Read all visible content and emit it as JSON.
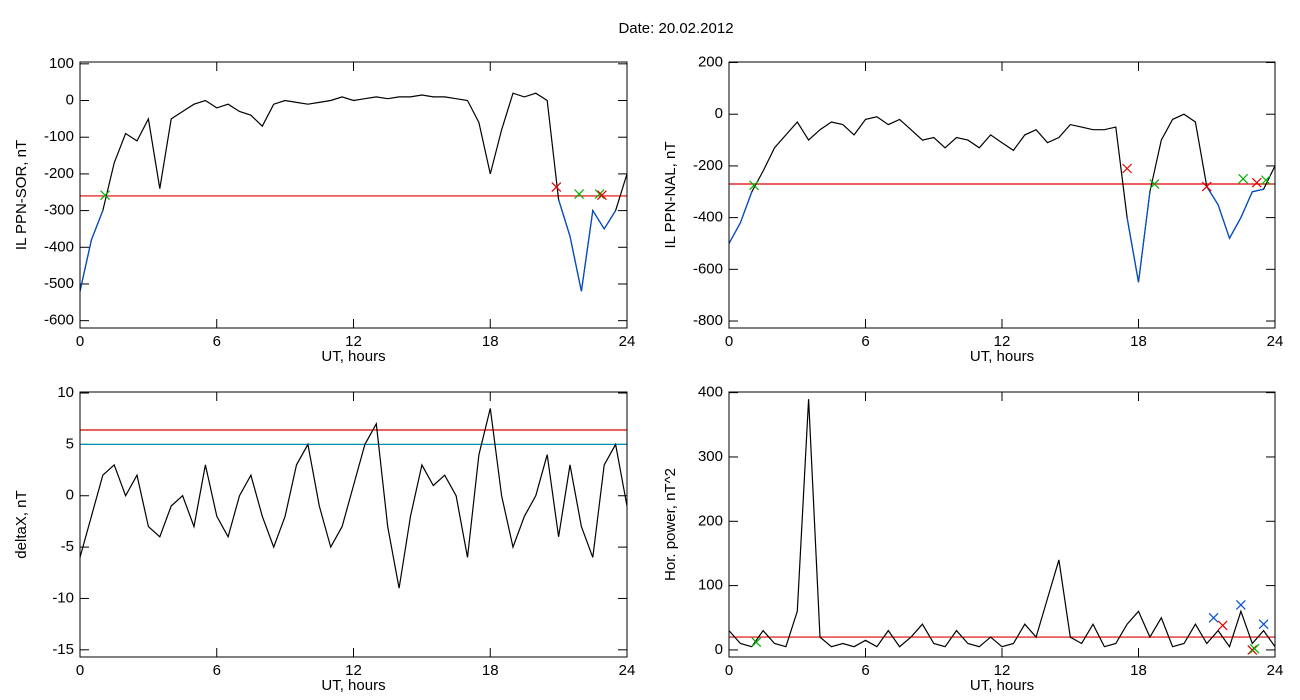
{
  "title": "Date:  20.02.2012",
  "chart_data": [
    {
      "type": "line",
      "xlabel": "UT, hours",
      "ylabel": "IL PPN-SOR, nT",
      "xlim": [
        0,
        24
      ],
      "xticks": [
        0,
        6,
        12,
        18,
        24
      ],
      "ylim": [
        -620,
        105
      ],
      "yticks": [
        -600,
        -500,
        -400,
        -300,
        -200,
        -100,
        0,
        100
      ],
      "x": [
        0,
        0.5,
        1,
        1.5,
        2,
        2.5,
        3,
        3.5,
        4,
        4.5,
        5,
        5.5,
        6,
        6.5,
        7,
        7.5,
        8,
        8.5,
        9,
        9.5,
        10,
        10.5,
        11,
        11.5,
        12,
        12.5,
        13,
        13.5,
        14,
        14.5,
        15,
        15.5,
        16,
        16.5,
        17,
        17.5,
        18,
        18.5,
        19,
        19.5,
        20,
        20.5,
        21,
        21.5,
        22,
        22.5,
        23,
        23.5,
        24
      ],
      "series": [
        {
          "color": "#000000",
          "values": [
            -520,
            -380,
            -300,
            -170,
            -90,
            -110,
            -50,
            -240,
            -50,
            -30,
            -10,
            0,
            -20,
            -10,
            -30,
            -40,
            -70,
            -10,
            0,
            -5,
            -10,
            -5,
            0,
            10,
            0,
            5,
            10,
            5,
            10,
            10,
            15,
            10,
            10,
            5,
            0,
            -60,
            -200,
            -80,
            20,
            10,
            20,
            0,
            -270,
            -370,
            -520,
            -300,
            -350,
            -300,
            -200
          ]
        },
        {
          "color": "#0050d0",
          "values": [
            -520,
            -380,
            -300,
            null,
            null,
            null,
            null,
            null,
            null,
            null,
            null,
            null,
            null,
            null,
            null,
            null,
            null,
            null,
            null,
            null,
            null,
            null,
            null,
            null,
            null,
            null,
            null,
            null,
            null,
            null,
            null,
            null,
            null,
            null,
            null,
            null,
            null,
            null,
            null,
            null,
            null,
            null,
            -270,
            -370,
            -520,
            -300,
            -350,
            -300,
            null
          ]
        }
      ],
      "thresholds": [
        {
          "value": -260,
          "color": "#e00000"
        }
      ],
      "markers": [
        {
          "color": "#00b000",
          "x": [
            1.1,
            21.9,
            22.8
          ],
          "values": [
            -258,
            -255,
            -255
          ]
        },
        {
          "color": "#e00000",
          "x": [
            20.9,
            22.9
          ],
          "values": [
            -236,
            -258
          ]
        }
      ]
    },
    {
      "type": "line",
      "xlabel": "UT, hours",
      "ylabel": "IL PPN-NAL, nT",
      "xlim": [
        0,
        24
      ],
      "xticks": [
        0,
        6,
        12,
        18,
        24
      ],
      "ylim": [
        -827,
        202
      ],
      "yticks": [
        -800,
        -600,
        -400,
        -200,
        0,
        200
      ],
      "x": [
        0,
        0.5,
        1,
        1.5,
        2,
        2.5,
        3,
        3.5,
        4,
        4.5,
        5,
        5.5,
        6,
        6.5,
        7,
        7.5,
        8,
        8.5,
        9,
        9.5,
        10,
        10.5,
        11,
        11.5,
        12,
        12.5,
        13,
        13.5,
        14,
        14.5,
        15,
        15.5,
        16,
        16.5,
        17,
        17.5,
        18,
        18.5,
        19,
        19.5,
        20,
        20.5,
        21,
        21.5,
        22,
        22.5,
        23,
        23.5,
        24
      ],
      "series": [
        {
          "color": "#000000",
          "values": [
            -500,
            -420,
            -300,
            -220,
            -130,
            -80,
            -30,
            -100,
            -60,
            -30,
            -40,
            -80,
            -20,
            -10,
            -40,
            -20,
            -60,
            -100,
            -90,
            -130,
            -90,
            -100,
            -130,
            -80,
            -110,
            -140,
            -80,
            -60,
            -110,
            -90,
            -40,
            -50,
            -60,
            -60,
            -50,
            -400,
            -650,
            -300,
            -100,
            -20,
            0,
            -30,
            -280,
            -350,
            -480,
            -400,
            -300,
            -290,
            -200
          ]
        },
        {
          "color": "#0050d0",
          "values": [
            -500,
            -420,
            -300,
            null,
            null,
            null,
            null,
            null,
            null,
            null,
            null,
            null,
            null,
            null,
            null,
            null,
            null,
            null,
            null,
            null,
            null,
            null,
            null,
            null,
            null,
            null,
            null,
            null,
            null,
            null,
            null,
            null,
            null,
            null,
            null,
            -400,
            -650,
            -300,
            null,
            null,
            null,
            null,
            -280,
            -350,
            -480,
            -400,
            -300,
            -290,
            null
          ]
        }
      ],
      "thresholds": [
        {
          "value": -270,
          "color": "#e00000"
        }
      ],
      "markers": [
        {
          "color": "#00b000",
          "x": [
            1.1,
            18.7,
            22.6,
            23.6
          ],
          "values": [
            -275,
            -270,
            -250,
            -255
          ]
        },
        {
          "color": "#e00000",
          "x": [
            17.5,
            21.0,
            23.2
          ],
          "values": [
            -210,
            -280,
            -265
          ]
        }
      ]
    },
    {
      "type": "line",
      "xlabel": "UT, hours",
      "ylabel": "deltaX, nT",
      "xlim": [
        0,
        24
      ],
      "xticks": [
        0,
        6,
        12,
        18,
        24
      ],
      "ylim": [
        -15.7,
        10.1
      ],
      "yticks": [
        -15,
        -10,
        -5,
        0,
        5,
        10
      ],
      "x": [
        0,
        0.5,
        1,
        1.5,
        2,
        2.5,
        3,
        3.5,
        4,
        4.5,
        5,
        5.5,
        6,
        6.5,
        7,
        7.5,
        8,
        8.5,
        9,
        9.5,
        10,
        10.5,
        11,
        11.5,
        12,
        12.5,
        13,
        13.5,
        14,
        14.5,
        15,
        15.5,
        16,
        16.5,
        17,
        17.5,
        18,
        18.5,
        19,
        19.5,
        20,
        20.5,
        21,
        21.5,
        22,
        22.5,
        23,
        23.5,
        24
      ],
      "series": [
        {
          "color": "#000000",
          "values": [
            -6,
            -2,
            2,
            3,
            0,
            2,
            -3,
            -4,
            -1,
            0,
            -3,
            3,
            -2,
            -4,
            0,
            2,
            -2,
            -5,
            -2,
            3,
            5,
            -1,
            -5,
            -3,
            1,
            5,
            7,
            -3,
            -9,
            -2,
            3,
            1,
            2,
            0,
            -6,
            4,
            8.5,
            0,
            -5,
            -2,
            0,
            4,
            -4,
            3,
            -3,
            -6,
            3,
            5,
            -1
          ]
        }
      ],
      "thresholds": [
        {
          "value": 6.4,
          "color": "#e00000"
        },
        {
          "value": 5.0,
          "color": "#0090b0"
        }
      ],
      "markers": []
    },
    {
      "type": "line",
      "xlabel": "UT, hours",
      "ylabel": "Hor. power, nT^2",
      "xlim": [
        0,
        24
      ],
      "xticks": [
        0,
        6,
        12,
        18,
        24
      ],
      "ylim": [
        -11,
        401
      ],
      "yticks": [
        0,
        100,
        200,
        300,
        400
      ],
      "x": [
        0,
        0.5,
        1,
        1.5,
        2,
        2.5,
        3,
        3.5,
        4,
        4.5,
        5,
        5.5,
        6,
        6.5,
        7,
        7.5,
        8,
        8.5,
        9,
        9.5,
        10,
        10.5,
        11,
        11.5,
        12,
        12.5,
        13,
        13.5,
        14,
        14.5,
        15,
        15.5,
        16,
        16.5,
        17,
        17.5,
        18,
        18.5,
        19,
        19.5,
        20,
        20.5,
        21,
        21.5,
        22,
        22.5,
        23,
        23.5,
        24
      ],
      "series": [
        {
          "color": "#000000",
          "values": [
            30,
            10,
            5,
            30,
            10,
            5,
            60,
            390,
            20,
            5,
            10,
            5,
            15,
            5,
            30,
            5,
            20,
            40,
            10,
            5,
            30,
            10,
            5,
            20,
            5,
            10,
            40,
            20,
            80,
            140,
            20,
            10,
            40,
            5,
            10,
            40,
            60,
            20,
            50,
            5,
            10,
            40,
            10,
            30,
            5,
            60,
            10,
            30,
            5
          ]
        }
      ],
      "thresholds": [
        {
          "value": 20,
          "color": "#e00000"
        }
      ],
      "markers": [
        {
          "color": "#0050d0",
          "x": [
            21.3,
            22.5,
            23.5
          ],
          "values": [
            50,
            70,
            40
          ]
        },
        {
          "color": "#e00000",
          "x": [
            21.7,
            23.0
          ],
          "values": [
            38,
            0
          ]
        },
        {
          "color": "#00b000",
          "x": [
            1.2,
            23.1
          ],
          "values": [
            12,
            2
          ]
        }
      ]
    }
  ]
}
